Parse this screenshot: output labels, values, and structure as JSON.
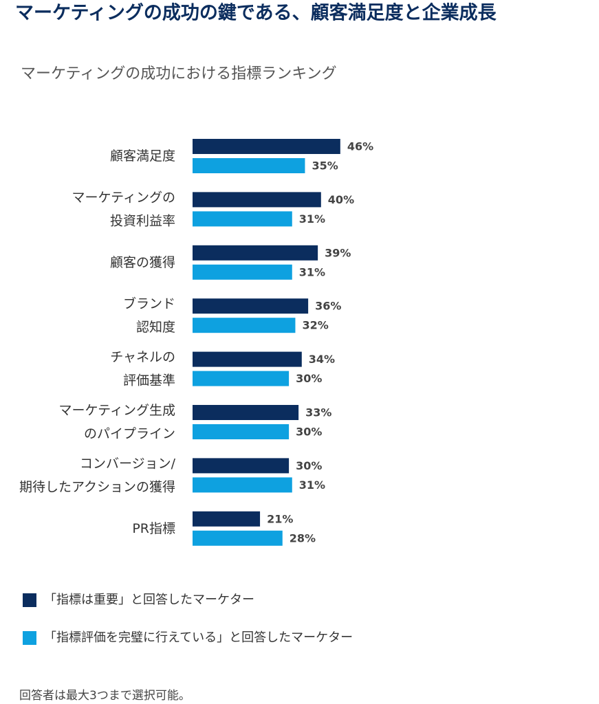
{
  "chart_data": {
    "type": "bar",
    "orientation": "horizontal",
    "title": "マーケティングの成功の鍵である、顧客満足度と企業成長",
    "subtitle": "マーケティングの成功における指標ランキング",
    "categories": [
      [
        "顧客満足度"
      ],
      [
        "マーケティングの",
        "投資利益率"
      ],
      [
        "顧客の獲得"
      ],
      [
        "ブランド",
        "認知度"
      ],
      [
        "チャネルの",
        "評価基準"
      ],
      [
        "マーケティング生成",
        "のパイプライン"
      ],
      [
        "コンバージョン/",
        "期待したアクションの獲得"
      ],
      [
        "PR指標"
      ]
    ],
    "series": [
      {
        "name": "「指標は重要」と回答したマーケター",
        "color": "#0b2d5e",
        "values": [
          46,
          40,
          39,
          36,
          34,
          33,
          30,
          21
        ],
        "value_labels": [
          "46%",
          "40%",
          "39%",
          "36%",
          "34%",
          "33%",
          "30%",
          "21%"
        ]
      },
      {
        "name": "「指標評価を完璧に行えている」と回答したマーケター",
        "color": "#0ea1e0",
        "values": [
          35,
          31,
          31,
          32,
          30,
          30,
          31,
          28
        ],
        "value_labels": [
          "35%",
          "31%",
          "31%",
          "32%",
          "30%",
          "30%",
          "31%",
          "28%"
        ]
      }
    ],
    "note": "回答者は最大3つまで選択可能。"
  }
}
